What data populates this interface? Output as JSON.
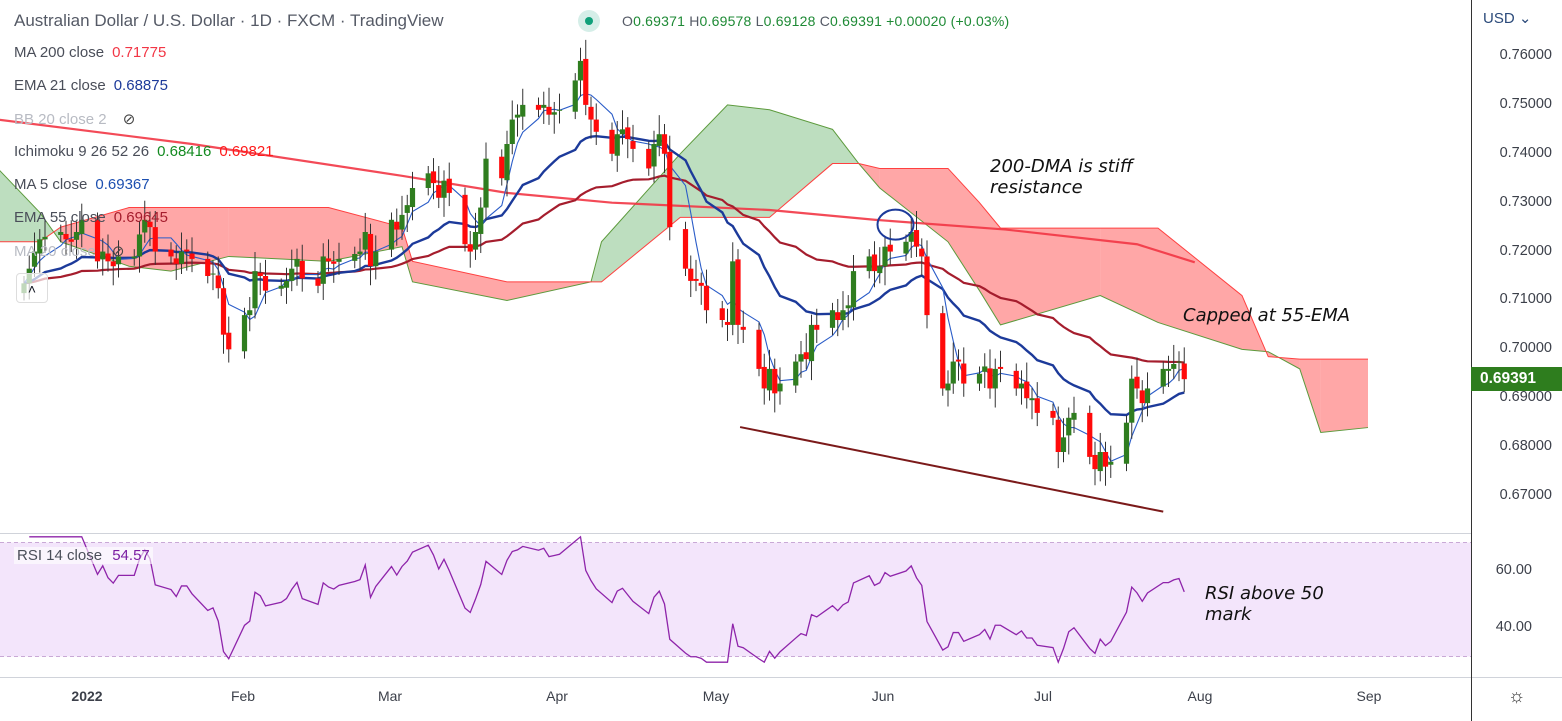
{
  "header": {
    "title": "Australian Dollar / U.S. Dollar · 1D · FXCM · TradingView",
    "ohlc": {
      "o_label": "O",
      "o": "0.69371",
      "h_label": "H",
      "h": "0.69578",
      "l_label": "L",
      "l": "0.69128",
      "c_label": "C",
      "c": "0.69391",
      "change": "+0.00020 (+0.03%)"
    }
  },
  "legend": [
    {
      "label": "MA 200 close",
      "value": "0.71775",
      "color": "#f23645"
    },
    {
      "label": "EMA 21 close",
      "value": "0.68875",
      "color": "#1c3a9a"
    },
    {
      "label": "BB 20 close 2",
      "value": "",
      "color": "#aaaaaa",
      "hidden": true
    },
    {
      "label": "Ichimoku 9 26 52 26",
      "value": "0.68416",
      "value2": "0.69821",
      "color": "#138a20",
      "color2": "#ff1a1a"
    },
    {
      "label": "MA 5 close",
      "value": "0.69367",
      "color": "#1c4fb0"
    },
    {
      "label": "EMA 55 close",
      "value": "0.69645",
      "color": "#a51d2d"
    },
    {
      "label": "MA 20 close",
      "value": "",
      "color": "#aaaaaa",
      "hidden": true
    }
  ],
  "axis": {
    "currency": "USD",
    "current_price": "0.69391",
    "price_ticks": [
      "0.76000",
      "0.75000",
      "0.74000",
      "0.73000",
      "0.72000",
      "0.71000",
      "0.70000",
      "0.69000",
      "0.68000",
      "0.67000"
    ],
    "rsi_ticks": [
      "60.00",
      "40.00"
    ],
    "time_ticks": [
      "2022",
      "Feb",
      "Mar",
      "Apr",
      "May",
      "Jun",
      "Jul",
      "Aug",
      "Sep"
    ]
  },
  "rsi": {
    "label": "RSI 14 close",
    "value": "54.57"
  },
  "annotations": {
    "dma": [
      "200-DMA is stiff",
      "resistance"
    ],
    "ema": "Capped at 55-EMA",
    "rsi": [
      "RSI above 50",
      "mark"
    ]
  },
  "chart_data": {
    "type": "candlestick",
    "x_units": "calendar days since 2022-01-01",
    "first_candle_day": -12,
    "closes": [
      0.7135,
      0.7165,
      0.72,
      0.7225,
      0.723,
      0.724,
      0.7225,
      0.722,
      0.724,
      0.7265,
      0.718,
      0.72,
      0.718,
      0.717,
      0.719,
      0.719,
      0.7235,
      0.7265,
      0.725,
      0.72,
      0.719,
      0.7175,
      0.72,
      0.72,
      0.7185,
      0.715,
      0.7155,
      0.7125,
      0.703,
      0.7,
      0.707,
      0.708,
      0.716,
      0.715,
      0.712,
      0.713,
      0.714,
      0.7165,
      0.7185,
      0.7145,
      0.713,
      0.719,
      0.718,
      0.7175,
      0.7185,
      0.7195,
      0.72,
      0.724,
      0.717,
      0.72,
      0.7265,
      0.7245,
      0.7275,
      0.7295,
      0.733,
      0.736,
      0.734,
      0.731,
      0.7345,
      0.732,
      0.7215,
      0.72,
      0.724,
      0.729,
      0.739,
      0.735,
      0.742,
      0.747,
      0.748,
      0.75,
      0.749,
      0.75,
      0.748,
      0.7485,
      0.749,
      0.755,
      0.759,
      0.75,
      0.747,
      0.7445,
      0.74,
      0.744,
      0.745,
      0.743,
      0.741,
      0.737,
      0.742,
      0.744,
      0.74,
      0.725,
      0.7165,
      0.714,
      0.714,
      0.713,
      0.708,
      0.706,
      0.705,
      0.718,
      0.705,
      0.704,
      0.696,
      0.692,
      0.696,
      0.691,
      0.693,
      0.6975,
      0.699,
      0.698,
      0.705,
      0.704,
      0.708,
      0.706,
      0.708,
      0.709,
      0.716,
      0.719,
      0.716,
      0.717,
      0.721,
      0.72,
      0.722,
      0.724,
      0.721,
      0.719,
      0.707,
      0.692,
      0.693,
      0.6975,
      0.6975,
      0.693,
      0.695,
      0.6965,
      0.692,
      0.696,
      0.696,
      0.692,
      0.693,
      0.69,
      0.69,
      0.687,
      0.686,
      0.679,
      0.682,
      0.686,
      0.687,
      0.678,
      0.6755,
      0.679,
      0.676,
      0.677,
      0.685,
      0.694,
      0.692,
      0.689,
      0.692,
      0.696,
      0.696,
      0.697,
      0.6975,
      0.6939
    ],
    "ma200": [
      [
        -17,
        0.747
      ],
      [
        20,
        0.742
      ],
      [
        60,
        0.7355
      ],
      [
        80,
        0.732
      ],
      [
        100,
        0.73
      ],
      [
        130,
        0.7285
      ],
      [
        150,
        0.7265
      ],
      [
        175,
        0.7245
      ],
      [
        200,
        0.7215
      ],
      [
        211,
        0.7178
      ]
    ],
    "ichimoku_cloud": [
      [
        -17,
        0.737,
        0.722
      ],
      [
        -9,
        0.728,
        0.722
      ],
      [
        -5,
        0.722,
        0.725
      ],
      [
        8,
        0.717,
        0.729
      ],
      [
        16,
        0.716,
        0.729
      ],
      [
        27,
        0.719,
        0.729
      ],
      [
        46,
        0.718,
        0.729
      ],
      [
        60,
        0.721,
        0.725
      ],
      [
        62,
        0.7138,
        0.718
      ],
      [
        80,
        0.71,
        0.7138
      ],
      [
        96,
        0.7138,
        0.7138
      ],
      [
        98,
        0.722,
        0.7138
      ],
      [
        113,
        0.74,
        0.727
      ],
      [
        122,
        0.75,
        0.727
      ],
      [
        130,
        0.749,
        0.727
      ],
      [
        142,
        0.745,
        0.738
      ],
      [
        147,
        0.738,
        0.738
      ],
      [
        151,
        0.733,
        0.737
      ],
      [
        164,
        0.722,
        0.737
      ],
      [
        170,
        0.712,
        0.73
      ],
      [
        174,
        0.705,
        0.7248
      ],
      [
        193,
        0.711,
        0.7248
      ],
      [
        204,
        0.7055,
        0.7248
      ],
      [
        220,
        0.7,
        0.711
      ],
      [
        225,
        0.6995,
        0.6985
      ],
      [
        231,
        0.696,
        0.698
      ],
      [
        235,
        0.683,
        0.698
      ],
      [
        244,
        0.684,
        0.698
      ]
    ],
    "trendline": [
      [
        124.4,
        0.6841
      ],
      [
        205,
        0.6668
      ]
    ],
    "highlight_circle": [
      154,
      0.7255
    ],
    "price_range": [
      0.66,
      0.77
    ],
    "rsi_range": [
      30,
      70
    ]
  }
}
